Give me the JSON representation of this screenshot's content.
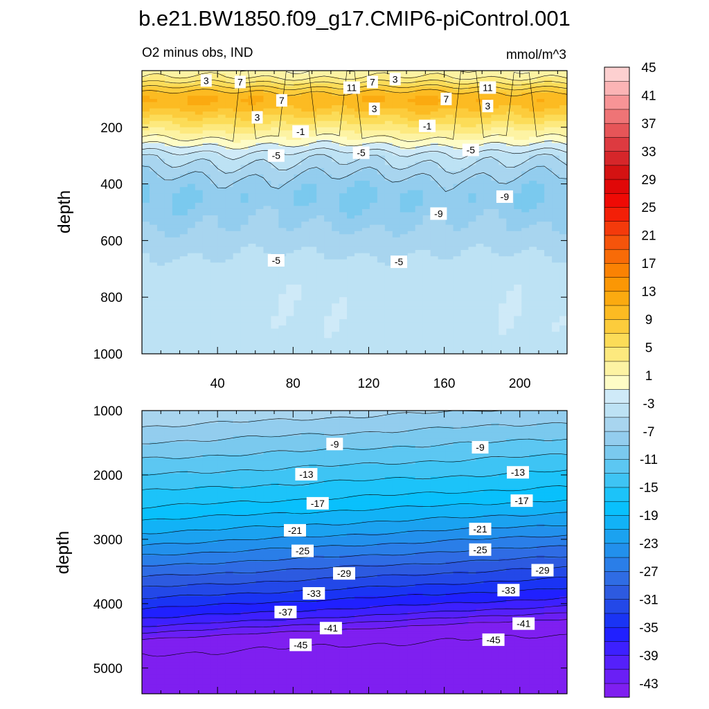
{
  "title": "b.e21.BW1850.f09_g17.CMIP6-piControl.001",
  "chart_data": [
    {
      "type": "contour",
      "panel": "upper",
      "left_label": "O2 minus obs, IND",
      "right_label": "mmol/m^3",
      "ylabel": "depth",
      "xlabel": "",
      "xlim": [
        0,
        225
      ],
      "ylim": [
        0,
        1000
      ],
      "y_reversed": true,
      "x_ticks": [
        "40",
        "80",
        "120",
        "160",
        "200"
      ],
      "x_tick_values": [
        40,
        80,
        120,
        160,
        200
      ],
      "y_ticks": [
        "200",
        "400",
        "600",
        "800",
        "1000"
      ],
      "y_tick_values": [
        200,
        400,
        600,
        800,
        1000
      ],
      "profile": {
        "depth": [
          0,
          25,
          50,
          75,
          100,
          125,
          150,
          175,
          200,
          225,
          250,
          275,
          300,
          350,
          400,
          450,
          500,
          550,
          600,
          650,
          700,
          800,
          900,
          1000
        ],
        "value": [
          1.5,
          3,
          6,
          9,
          11,
          10,
          8,
          6,
          4,
          2,
          0,
          -2,
          -4,
          -6,
          -8,
          -9,
          -8,
          -7,
          -6,
          -5,
          -4,
          -3.5,
          -3.5,
          -4
        ]
      },
      "contour_labels": [
        {
          "text": "3",
          "x": 34,
          "depth": 35
        },
        {
          "text": "7",
          "x": 52,
          "depth": 40
        },
        {
          "text": "7",
          "x": 74,
          "depth": 105
        },
        {
          "text": "3",
          "x": 61,
          "depth": 165
        },
        {
          "text": "11",
          "x": 111,
          "depth": 60
        },
        {
          "text": "7",
          "x": 122,
          "depth": 40
        },
        {
          "text": "3",
          "x": 134,
          "depth": 30
        },
        {
          "text": "3",
          "x": 123,
          "depth": 135
        },
        {
          "text": "11",
          "x": 183,
          "depth": 60
        },
        {
          "text": "7",
          "x": 161,
          "depth": 100
        },
        {
          "text": "3",
          "x": 183,
          "depth": 125
        },
        {
          "text": "-1",
          "x": 84,
          "depth": 215
        },
        {
          "text": "-1",
          "x": 151,
          "depth": 195
        },
        {
          "text": "-5",
          "x": 71,
          "depth": 300
        },
        {
          "text": "-5",
          "x": 116,
          "depth": 290
        },
        {
          "text": "-5",
          "x": 174,
          "depth": 280
        },
        {
          "text": "-9",
          "x": 192,
          "depth": 445
        },
        {
          "text": "-9",
          "x": 157,
          "depth": 505
        },
        {
          "text": "-5",
          "x": 71,
          "depth": 670
        },
        {
          "text": "-5",
          "x": 136,
          "depth": 675
        }
      ]
    },
    {
      "type": "contour",
      "panel": "lower",
      "ylabel": "depth",
      "xlabel": "",
      "xlim": [
        0,
        225
      ],
      "ylim": [
        1000,
        5400
      ],
      "y_reversed": true,
      "y_ticks": [
        "1000",
        "2000",
        "3000",
        "4000",
        "5000"
      ],
      "y_tick_values": [
        1000,
        2000,
        3000,
        4000,
        5000
      ],
      "profile": {
        "depth": [
          1000,
          1500,
          2000,
          2500,
          3000,
          3500,
          4000,
          4300,
          4600,
          5000,
          5400
        ],
        "value": [
          -5,
          -9,
          -13,
          -17,
          -22,
          -28,
          -34,
          -38,
          -44,
          -46,
          -46
        ]
      },
      "contour_labels": [
        {
          "text": "-9",
          "x": 102,
          "depth": 1520
        },
        {
          "text": "-9",
          "x": 179,
          "depth": 1570
        },
        {
          "text": "-13",
          "x": 87,
          "depth": 1990
        },
        {
          "text": "-13",
          "x": 199,
          "depth": 1960
        },
        {
          "text": "-17",
          "x": 93,
          "depth": 2440
        },
        {
          "text": "-17",
          "x": 201,
          "depth": 2400
        },
        {
          "text": "-21",
          "x": 81,
          "depth": 2860
        },
        {
          "text": "-21",
          "x": 179,
          "depth": 2840
        },
        {
          "text": "-25",
          "x": 85,
          "depth": 3180
        },
        {
          "text": "-25",
          "x": 179,
          "depth": 3160
        },
        {
          "text": "-29",
          "x": 107,
          "depth": 3530
        },
        {
          "text": "-29",
          "x": 212,
          "depth": 3480
        },
        {
          "text": "-33",
          "x": 91,
          "depth": 3840
        },
        {
          "text": "-33",
          "x": 194,
          "depth": 3790
        },
        {
          "text": "-37",
          "x": 76,
          "depth": 4130
        },
        {
          "text": "-41",
          "x": 100,
          "depth": 4380
        },
        {
          "text": "-41",
          "x": 202,
          "depth": 4310
        },
        {
          "text": "-45",
          "x": 84,
          "depth": 4640
        },
        {
          "text": "-45",
          "x": 186,
          "depth": 4560
        }
      ]
    },
    {
      "type": "colorbar",
      "levels": [
        -45,
        -43,
        -41,
        -39,
        -37,
        -35,
        -33,
        -31,
        -29,
        -27,
        -25,
        -23,
        -21,
        -19,
        -17,
        -15,
        -13,
        -11,
        -9,
        -7,
        -5,
        -3,
        -1,
        1,
        3,
        5,
        7,
        9,
        11,
        13,
        15,
        17,
        19,
        21,
        23,
        25,
        27,
        29,
        31,
        33,
        35,
        37,
        39,
        41,
        43,
        45
      ],
      "tick_labels": [
        "45",
        "41",
        "37",
        "33",
        "29",
        "25",
        "21",
        "17",
        "13",
        "9",
        "5",
        "1",
        "-3",
        "-7",
        "-11",
        "-15",
        "-19",
        "-23",
        "-27",
        "-31",
        "-35",
        "-39",
        "-43"
      ],
      "tick_values": [
        45,
        41,
        37,
        33,
        29,
        25,
        21,
        17,
        13,
        9,
        5,
        1,
        -3,
        -7,
        -11,
        -15,
        -19,
        -23,
        -27,
        -31,
        -35,
        -39,
        -43
      ],
      "colors": [
        "#7f1ff0",
        "#6a1ff5",
        "#5520fa",
        "#3d20ff",
        "#2020ff",
        "#1a34f4",
        "#2348e8",
        "#2d5ae0",
        "#2f6ce4",
        "#2a7ee8",
        "#2290ec",
        "#1ba2f0",
        "#12b2f6",
        "#09c0fc",
        "#1cc3f9",
        "#3ec4f4",
        "#5cc7f2",
        "#7ac9ee",
        "#93cdee",
        "#a8d5ef",
        "#bde2f4",
        "#cfeaf8",
        "#fefcc6",
        "#fdf3a3",
        "#fde97e",
        "#fcdc58",
        "#fccc3c",
        "#fcbb22",
        "#fbaa10",
        "#fb9705",
        "#fa8203",
        "#f86b07",
        "#f5540b",
        "#f43a0b",
        "#f31f07",
        "#ef0a05",
        "#e00808",
        "#d41212",
        "#d6262a",
        "#dd3a40",
        "#e65558",
        "#ef7476",
        "#f79496",
        "#fbb4b5",
        "#fdd0d0"
      ]
    }
  ]
}
